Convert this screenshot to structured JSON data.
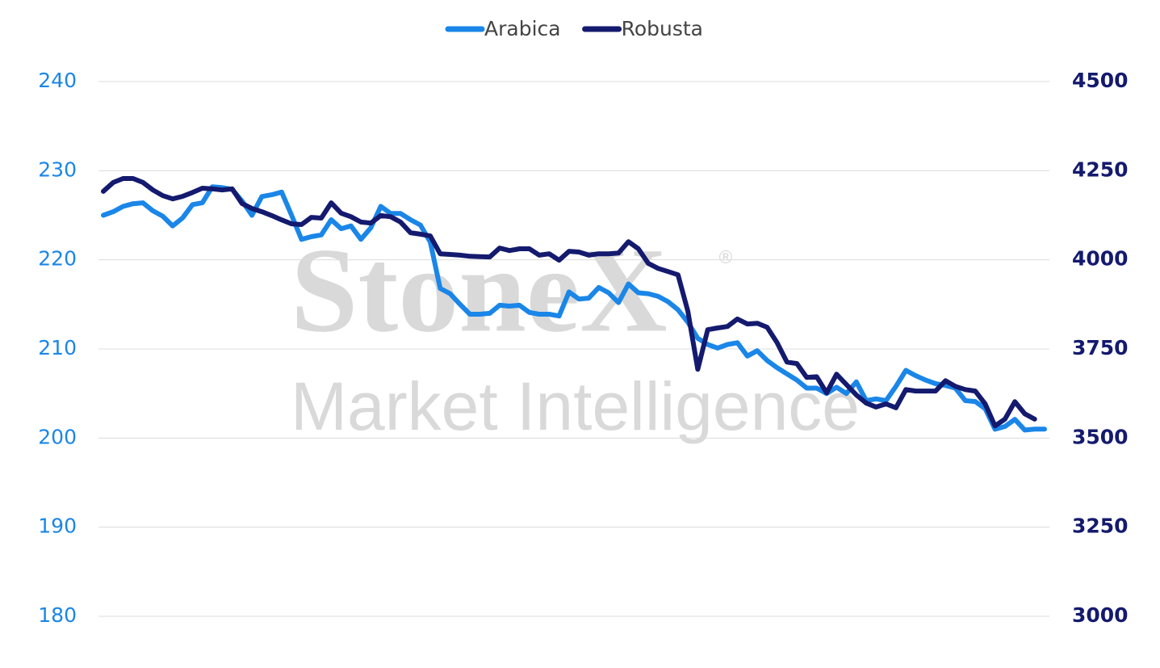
{
  "chart_data": {
    "type": "line",
    "watermark": {
      "brand": "StoneX",
      "mark": "®",
      "subtitle": "Market Intelligence"
    },
    "categories": [
      null,
      null,
      null,
      null,
      null,
      null,
      null,
      null,
      null,
      null,
      null,
      null,
      null,
      null,
      null,
      null,
      null,
      null,
      null,
      null,
      null,
      null,
      null,
      null,
      null,
      null,
      null,
      null,
      null,
      null,
      null,
      null,
      null,
      null,
      null,
      null,
      null,
      null,
      null,
      null,
      null,
      null,
      null,
      null,
      null,
      null,
      null,
      null,
      null,
      null,
      null,
      null,
      null,
      null,
      null,
      null,
      null,
      null,
      null,
      null,
      null,
      null,
      null,
      null,
      null,
      null,
      null,
      null,
      null,
      null,
      null,
      null,
      null,
      null,
      null,
      null,
      null,
      null,
      null,
      null,
      null,
      null,
      null,
      null,
      null,
      null,
      null,
      null,
      null,
      null,
      null,
      null,
      null,
      null,
      null,
      null
    ],
    "series": [
      {
        "name": "Arabica",
        "color": "#1a86e8",
        "axis": "y",
        "values": [
          225,
          225.4,
          226,
          226.3,
          226.4,
          225.5,
          224.9,
          223.8,
          224.7,
          226.2,
          226.4,
          228.2,
          228.1,
          227.9,
          226.6,
          225,
          227.1,
          227.3,
          227.6,
          225,
          222.3,
          222.6,
          222.8,
          224.5,
          223.5,
          223.8,
          222.3,
          223.6,
          226,
          225.2,
          225.2,
          224.5,
          223.9,
          222,
          216.8,
          216.2,
          215,
          213.9,
          213.9,
          214,
          214.9,
          214.8,
          214.9,
          214.1,
          213.9,
          213.9,
          213.7,
          216.4,
          215.6,
          215.7,
          216.9,
          216.3,
          215.2,
          217.3,
          216.3,
          216.2,
          215.9,
          215.3,
          214.4,
          213,
          211.2,
          210.5,
          210.1,
          210.5,
          210.7,
          209.2,
          209.8,
          208.7,
          207.9,
          207.2,
          206.5,
          205.6,
          205.6,
          205,
          205.7,
          205,
          206.3,
          204.2,
          204.4,
          204.2,
          205.8,
          207.6,
          207,
          206.5,
          206.1,
          205.9,
          205.6,
          204.2,
          204.1,
          203.3,
          201,
          201.3,
          202.1,
          200.9,
          201,
          201
        ]
      },
      {
        "name": "Robusta",
        "color": "#141a6e",
        "axis": "y2",
        "values": [
          4192,
          4217,
          4228,
          4228,
          4217,
          4196,
          4180,
          4171,
          4178,
          4189,
          4201,
          4199,
          4196,
          4199,
          4158,
          4144,
          4135,
          4124,
          4112,
          4101,
          4099,
          4119,
          4117,
          4160,
          4131,
          4121,
          4106,
          4103,
          4124,
          4121,
          4106,
          4076,
          4072,
          4067,
          4017,
          4015,
          4013,
          4010,
          4009,
          4008,
          4033,
          4026,
          4031,
          4031,
          4013,
          4017,
          3999,
          4024,
          4022,
          4013,
          4017,
          4017,
          4019,
          4051,
          4031,
          3990,
          3976,
          3967,
          3958,
          3856,
          3693,
          3804,
          3809,
          3813,
          3834,
          3820,
          3822,
          3811,
          3768,
          3713,
          3709,
          3670,
          3672,
          3627,
          3679,
          3650,
          3621,
          3598,
          3587,
          3596,
          3585,
          3636,
          3632,
          3632,
          3632,
          3661,
          3645,
          3636,
          3632,
          3596,
          3534,
          3553,
          3602,
          3568,
          3553,
          null
        ]
      }
    ],
    "ylim": [
      180,
      240
    ],
    "yticks": [
      180,
      190,
      200,
      210,
      220,
      230,
      240
    ],
    "y2lim": [
      3000,
      4500
    ],
    "y2ticks": [
      3000,
      3250,
      3500,
      3750,
      4000,
      4250,
      4500
    ],
    "grid": true,
    "legend": "top"
  }
}
